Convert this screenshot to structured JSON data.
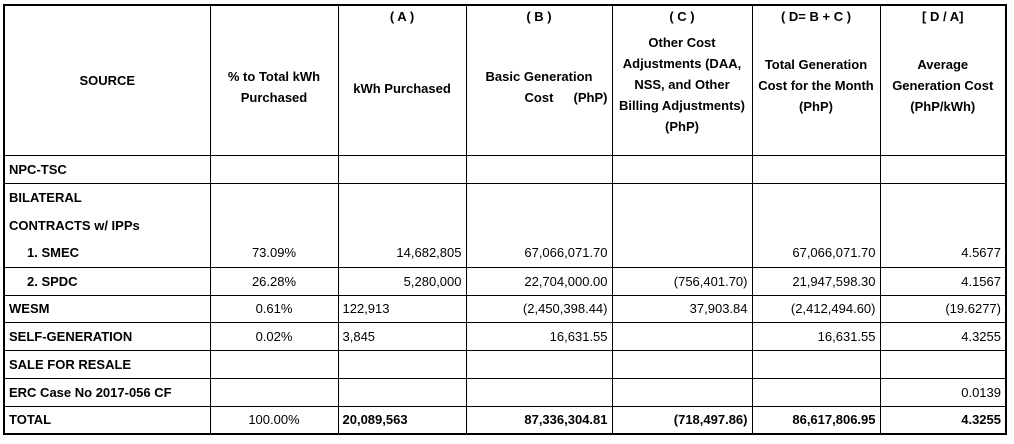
{
  "headers": {
    "source": "SOURCE",
    "pct": "% to Total kWh Purchased",
    "kwh_ref": "( A )",
    "kwh": "kWh Purchased",
    "basic_ref": "( B )",
    "basic_left": "Basic Generation Cost",
    "basic_right": "(PhP)",
    "other_ref": "( C )",
    "other": "Other Cost Adjustments (DAA, NSS, and Other Billing Adjustments) (PhP)",
    "total_ref": "( D= B + C )",
    "total": "Total Generation Cost for the Month (PhP)",
    "avg_ref": "[ D / A]",
    "avg": "Average Generation Cost (PhP/kWh)"
  },
  "rows": [
    {
      "source": "NPC-TSC",
      "pct": "",
      "kwh": "",
      "basic": "",
      "other": "",
      "total": "",
      "avg": ""
    },
    {
      "source": "BILATERAL",
      "pct": "",
      "kwh": "",
      "basic": "",
      "other": "",
      "total": "",
      "avg": ""
    },
    {
      "source": "CONTRACTS w/ IPPs",
      "pct": "",
      "kwh": "",
      "basic": "",
      "other": "",
      "total": "",
      "avg": ""
    },
    {
      "source": "1.   SMEC",
      "pct": "73.09%",
      "kwh": "14,682,805",
      "basic": "67,066,071.70",
      "other": "",
      "total": "67,066,071.70",
      "avg": "4.5677"
    },
    {
      "source": "2.   SPDC",
      "pct": "26.28%",
      "kwh": "5,280,000",
      "basic": "22,704,000.00",
      "other": "(756,401.70)",
      "total": "21,947,598.30",
      "avg": "4.1567"
    },
    {
      "source": "WESM",
      "pct": "0.61%",
      "kwh": "122,913",
      "basic": "(2,450,398.44)",
      "other": "37,903.84",
      "total": "(2,412,494.60)",
      "avg": "(19.6277)"
    },
    {
      "source": "SELF-GENERATION",
      "pct": "0.02%",
      "kwh": "3,845",
      "basic": "16,631.55",
      "other": "",
      "total": "16,631.55",
      "avg": "4.3255"
    },
    {
      "source": "SALE FOR RESALE",
      "pct": "",
      "kwh": "",
      "basic": "",
      "other": "",
      "total": "",
      "avg": ""
    },
    {
      "source": "ERC Case No 2017-056 CF",
      "pct": "",
      "kwh": "",
      "basic": "",
      "other": "",
      "total": "",
      "avg": "0.0139"
    }
  ],
  "total": {
    "source": "TOTAL",
    "pct": "100.00%",
    "kwh": "20,089,563",
    "basic": "87,336,304.81",
    "other": "(718,497.86)",
    "total": "86,617,806.95",
    "avg": "4.3255"
  }
}
